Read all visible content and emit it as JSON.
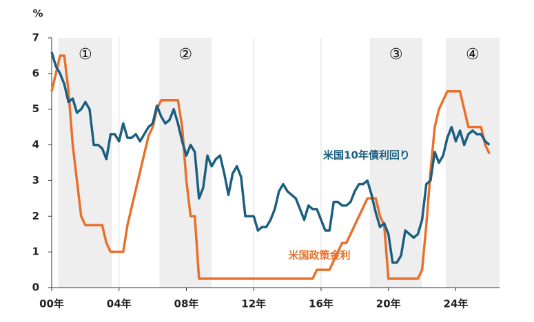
{
  "chart_data": {
    "type": "line",
    "y_unit": "%",
    "x": [
      2000,
      2000.25,
      2000.5,
      2000.75,
      2001,
      2001.25,
      2001.5,
      2001.75,
      2002,
      2002.25,
      2002.5,
      2002.75,
      2003,
      2003.25,
      2003.5,
      2003.75,
      2004,
      2004.25,
      2004.5,
      2004.75,
      2005,
      2005.25,
      2005.5,
      2005.75,
      2006,
      2006.25,
      2006.5,
      2006.75,
      2007,
      2007.25,
      2007.5,
      2007.75,
      2008,
      2008.25,
      2008.5,
      2008.75,
      2009,
      2009.25,
      2009.5,
      2009.75,
      2010,
      2010.25,
      2010.5,
      2010.75,
      2011,
      2011.25,
      2011.5,
      2011.75,
      2012,
      2012.25,
      2012.5,
      2012.75,
      2013,
      2013.25,
      2013.5,
      2013.75,
      2014,
      2014.25,
      2014.5,
      2014.75,
      2015,
      2015.25,
      2015.5,
      2015.75,
      2016,
      2016.25,
      2016.5,
      2016.75,
      2017,
      2017.25,
      2017.5,
      2017.75,
      2018,
      2018.25,
      2018.5,
      2018.75,
      2019,
      2019.25,
      2019.5,
      2019.75,
      2020,
      2020.25,
      2020.5,
      2020.75,
      2021,
      2021.25,
      2021.5,
      2021.75,
      2022,
      2022.25,
      2022.5,
      2022.75,
      2023,
      2023.25,
      2023.5,
      2023.75,
      2024,
      2024.25,
      2024.5,
      2024.75,
      2025,
      2025.25,
      2025.5,
      2025.75,
      2026
    ],
    "series": [
      {
        "name": "米国10年債利回り",
        "color": "#1a5e80",
        "values": [
          6.6,
          6.2,
          6.0,
          5.7,
          5.2,
          5.3,
          4.9,
          5.0,
          5.2,
          5.0,
          4.0,
          4.0,
          3.9,
          3.6,
          4.3,
          4.3,
          4.1,
          4.6,
          4.2,
          4.2,
          4.3,
          4.1,
          4.3,
          4.5,
          4.6,
          5.1,
          4.8,
          4.6,
          4.7,
          5.0,
          4.6,
          4.1,
          3.7,
          4.0,
          3.8,
          2.5,
          2.8,
          3.7,
          3.4,
          3.6,
          3.7,
          3.2,
          2.6,
          3.2,
          3.4,
          3.1,
          2.0,
          2.0,
          2.0,
          1.6,
          1.7,
          1.7,
          1.9,
          2.2,
          2.7,
          2.9,
          2.7,
          2.6,
          2.5,
          2.2,
          1.9,
          2.3,
          2.2,
          2.2,
          1.9,
          1.6,
          1.6,
          2.4,
          2.4,
          2.3,
          2.3,
          2.4,
          2.7,
          2.9,
          2.9,
          3.0,
          2.6,
          2.1,
          1.7,
          1.8,
          1.5,
          0.7,
          0.7,
          0.9,
          1.6,
          1.5,
          1.4,
          1.5,
          1.9,
          2.9,
          3.0,
          3.8,
          3.5,
          3.7,
          4.2,
          4.5,
          4.1,
          4.4,
          4.0,
          4.3,
          4.4,
          4.3,
          4.3,
          4.1,
          4.0
        ]
      },
      {
        "name": "米国政策金利",
        "color": "#e8702a",
        "values": [
          5.5,
          6.0,
          6.5,
          6.5,
          5.5,
          4.0,
          3.0,
          2.0,
          1.75,
          1.75,
          1.75,
          1.75,
          1.75,
          1.25,
          1.0,
          1.0,
          1.0,
          1.0,
          1.75,
          2.25,
          2.75,
          3.25,
          3.75,
          4.25,
          4.5,
          5.0,
          5.25,
          5.25,
          5.25,
          5.25,
          5.25,
          4.5,
          3.0,
          2.0,
          2.0,
          0.25,
          0.25,
          0.25,
          0.25,
          0.25,
          0.25,
          0.25,
          0.25,
          0.25,
          0.25,
          0.25,
          0.25,
          0.25,
          0.25,
          0.25,
          0.25,
          0.25,
          0.25,
          0.25,
          0.25,
          0.25,
          0.25,
          0.25,
          0.25,
          0.25,
          0.25,
          0.25,
          0.25,
          0.5,
          0.5,
          0.5,
          0.5,
          0.75,
          1.0,
          1.25,
          1.25,
          1.5,
          1.75,
          2.0,
          2.25,
          2.5,
          2.5,
          2.5,
          2.0,
          1.75,
          0.25,
          0.25,
          0.25,
          0.25,
          0.25,
          0.25,
          0.25,
          0.25,
          0.5,
          1.75,
          3.25,
          4.5,
          5.0,
          5.25,
          5.5,
          5.5,
          5.5,
          5.5,
          5.0,
          4.5,
          4.5,
          4.5,
          4.5,
          4.0,
          3.75
        ]
      }
    ],
    "annotations": [
      {
        "text": "米国10年債利回り",
        "x": 2018.7,
        "y": 3.7,
        "color": "#1a5e80"
      },
      {
        "text": "米国政策金利",
        "x": 2015.9,
        "y": 0.9,
        "color": "#e8702a"
      }
    ],
    "shaded": [
      {
        "from": 2000.4,
        "to": 2003.6,
        "label": "①"
      },
      {
        "from": 2006.4,
        "to": 2009.5,
        "label": "②"
      },
      {
        "from": 2018.9,
        "to": 2022.0,
        "label": "③"
      },
      {
        "from": 2023.4,
        "to": 2026.6,
        "label": "④"
      }
    ],
    "shade_color": "#eeeeee",
    "xlim": [
      2000,
      2026.6
    ],
    "xticks": [
      {
        "value": 2000,
        "label": "00年"
      },
      {
        "value": 2004,
        "label": "04年"
      },
      {
        "value": 2008,
        "label": "08年"
      },
      {
        "value": 2012,
        "label": "12年"
      },
      {
        "value": 2016,
        "label": "16年"
      },
      {
        "value": 2020,
        "label": "20年"
      },
      {
        "value": 2024,
        "label": "24年"
      }
    ],
    "ylim": [
      0,
      7
    ],
    "yticks": [
      0,
      1,
      2,
      3,
      4,
      5,
      6,
      7
    ],
    "grid": true
  }
}
